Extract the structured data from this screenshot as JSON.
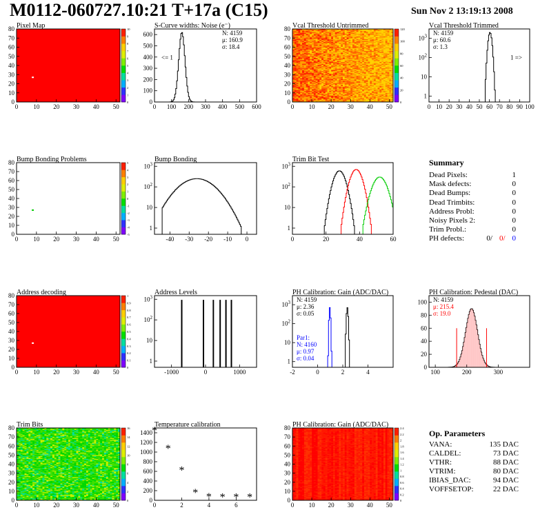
{
  "header": {
    "title": "M0112-060727.10:21 T+17a (C15)",
    "date": "Sun Nov  2 13:19:13 2008"
  },
  "colors": {
    "red": "#ff0000",
    "blue": "#0000ff",
    "green": "#00cc00",
    "black": "#000000",
    "palette": [
      "#8000ff",
      "#3030ff",
      "#00b0ff",
      "#00e0a0",
      "#00e000",
      "#80f000",
      "#e0f000",
      "#ffd000",
      "#ff8000",
      "#ff2000"
    ]
  },
  "summary": {
    "title": "Summary",
    "rows": [
      {
        "label": "Dead Pixels:",
        "value": "1"
      },
      {
        "label": "Mask defects:",
        "value": "0"
      },
      {
        "label": "Dead Bumps:",
        "value": "0"
      },
      {
        "label": "Dead Trimbits:",
        "value": "0"
      },
      {
        "label": "Address Probl:",
        "value": "0"
      },
      {
        "label": "Noisy Pixels 2:",
        "value": "0"
      },
      {
        "label": "Trim Probl.:",
        "value": "0"
      }
    ],
    "ph_defects": {
      "label": "PH defects:",
      "black": "0/",
      "red": "0/",
      "blue": "0"
    }
  },
  "op_parameters": {
    "title": "Op. Parameters",
    "rows": [
      {
        "name": "VANA:",
        "value": "135 DAC"
      },
      {
        "name": "CALDEL:",
        "value": "73 DAC"
      },
      {
        "name": "VTHR:",
        "value": "88 DAC"
      },
      {
        "name": "VTRIM:",
        "value": "80 DAC"
      },
      {
        "name": "IBIAS_DAC:",
        "value": "94 DAC"
      },
      {
        "name": "VOFFSETOP:",
        "value": "22 DAC"
      }
    ]
  },
  "chart_data": [
    {
      "id": "pixel_map",
      "type": "heatmap",
      "title": "Pixel Map",
      "fill": "uniform-red",
      "xlim": [
        0,
        52
      ],
      "ylim": [
        0,
        80
      ],
      "xticks": [
        0,
        10,
        20,
        30,
        40,
        50
      ],
      "yticks": [
        0,
        10,
        20,
        30,
        40,
        50,
        60,
        70,
        80
      ],
      "palette_ticks": [
        "0",
        "1",
        "2",
        "3",
        "4",
        "5",
        "6",
        "7",
        "8",
        "9",
        "10"
      ],
      "outliers": [
        {
          "x": 8,
          "y": 27
        }
      ]
    },
    {
      "id": "noise",
      "type": "histogram",
      "title": "S-Curve widths: Noise (e⁻)",
      "xlim": [
        0,
        600
      ],
      "ylim": [
        0,
        650
      ],
      "xticks": [
        0,
        100,
        200,
        300,
        400,
        500,
        600
      ],
      "yticks": [
        0,
        100,
        200,
        300,
        400,
        500,
        600
      ],
      "series": [
        {
          "name": "",
          "shape": "gauss",
          "mean": 160.9,
          "sigma": 18.4,
          "peak": 620,
          "color": "#000000"
        }
      ],
      "stats": [
        "N: 4159",
        "μ: 160.9",
        "σ: 18.4"
      ],
      "annotations": [
        "<= 1"
      ]
    },
    {
      "id": "vcal_untrimmed",
      "type": "heatmap",
      "title": "Vcal Threshold Untrimmed",
      "fill": "noisy",
      "xlim": [
        0,
        52
      ],
      "ylim": [
        0,
        80
      ],
      "xticks": [
        0,
        10,
        20,
        30,
        40,
        50
      ],
      "yticks": [
        0,
        10,
        20,
        30,
        40,
        50,
        60,
        70,
        80
      ],
      "palette_ticks": [
        "0",
        "20",
        "40",
        "60",
        "80",
        "100",
        "120"
      ]
    },
    {
      "id": "vcal_trimmed",
      "type": "histogram",
      "title": "Vcal Threshold Trimmed",
      "log": true,
      "xlim": [
        0,
        100
      ],
      "ylim": [
        0.5,
        3000
      ],
      "xticks": [
        0,
        10,
        20,
        30,
        40,
        50,
        60,
        70,
        80,
        90,
        100
      ],
      "yticks": [
        1,
        10,
        100,
        1000
      ],
      "series": [
        {
          "name": "",
          "shape": "gauss",
          "mean": 60.6,
          "sigma": 1.3,
          "peak": 2000,
          "color": "#000000"
        }
      ],
      "stats": [
        "N: 4159",
        "μ: 60.6",
        "σ:  1.3"
      ],
      "annotations": [
        "1 =>"
      ]
    },
    {
      "id": "bump_problems",
      "type": "heatmap",
      "title": "Bump Bonding Problems",
      "fill": "empty",
      "xlim": [
        0,
        52
      ],
      "ylim": [
        0,
        80
      ],
      "xticks": [
        0,
        10,
        20,
        30,
        40,
        50
      ],
      "yticks": [
        0,
        10,
        20,
        30,
        40,
        50,
        60,
        70,
        80
      ],
      "palette_ticks": [
        "-5",
        "-4",
        "-3",
        "-2",
        "-1",
        "0",
        "1",
        "2",
        "3",
        "4",
        "5"
      ],
      "outliers": [
        {
          "x": 8,
          "y": 27
        }
      ]
    },
    {
      "id": "bump_bonding",
      "type": "histogram",
      "title": "Bump Bonding",
      "log": true,
      "xlim": [
        -48,
        5
      ],
      "ylim": [
        0.5,
        1500
      ],
      "xticks": [
        -40,
        -30,
        -20,
        -10,
        0
      ],
      "yticks": [
        1,
        10,
        100,
        1000
      ],
      "series": [
        {
          "name": "",
          "shape": "plateau",
          "lo": -44,
          "hi": -3,
          "mean": -26,
          "sigma": 7,
          "peak": 250,
          "color": "#000000"
        }
      ]
    },
    {
      "id": "trim_bits_test",
      "type": "histogram",
      "title": "Trim Bit Test",
      "log": true,
      "xlim": [
        0,
        60
      ],
      "ylim": [
        0.5,
        1500
      ],
      "xticks": [
        0,
        20,
        40,
        60
      ],
      "yticks": [
        1,
        10,
        100,
        1000
      ],
      "series": [
        {
          "name": "",
          "shape": "gauss",
          "mean": 28,
          "sigma": 2.5,
          "peak": 600,
          "color": "#000000"
        },
        {
          "name": "",
          "shape": "gauss",
          "mean": 38,
          "sigma": 2.5,
          "peak": 700,
          "color": "#ff0000"
        },
        {
          "name": "",
          "shape": "gauss",
          "mean": 52,
          "sigma": 3.0,
          "peak": 300,
          "color": "#00cc00"
        }
      ]
    },
    {
      "id": "address_decoding",
      "type": "heatmap",
      "title": "Address decoding",
      "fill": "uniform-red",
      "xlim": [
        0,
        52
      ],
      "ylim": [
        0,
        80
      ],
      "xticks": [
        0,
        10,
        20,
        30,
        40,
        50
      ],
      "yticks": [
        0,
        10,
        20,
        30,
        40,
        50,
        60,
        70,
        80
      ],
      "palette_ticks": [
        "0",
        "0.1",
        "0.2",
        "0.3",
        "0.4",
        "0.5",
        "0.6",
        "0.7",
        "0.8",
        "0.9",
        "1"
      ],
      "outliers": [
        {
          "x": 8,
          "y": 27
        }
      ]
    },
    {
      "id": "address_levels",
      "type": "histogram",
      "title": "Address Levels",
      "log": true,
      "xlim": [
        -1500,
        1500
      ],
      "ylim": [
        0.5,
        1500
      ],
      "xticks": [
        -1000,
        0,
        1000
      ],
      "yticks": [
        1,
        10,
        100,
        1000
      ],
      "series": [
        {
          "name": "",
          "shape": "spikes",
          "x": [
            -700,
            -60,
            230,
            430,
            600,
            760
          ],
          "peak": 900,
          "color": "#000000"
        }
      ]
    },
    {
      "id": "ph_gain",
      "type": "histogram",
      "title": "PH Calibration: Gain (ADC/DAC)",
      "log": true,
      "xlim": [
        -2,
        6
      ],
      "ylim": [
        0.5,
        3000
      ],
      "xticks": [
        -2,
        0,
        2,
        4
      ],
      "yticks": [
        1,
        10,
        100,
        1000
      ],
      "series": [
        {
          "name": "",
          "shape": "gauss",
          "mean": 2.36,
          "sigma": 0.05,
          "peak": 700,
          "color": "#000000"
        },
        {
          "name": "Par1:",
          "shape": "gauss",
          "mean": 0.97,
          "sigma": 0.04,
          "peak": 700,
          "color": "#0000ff"
        }
      ],
      "stats": [
        "N: 4159",
        "μ: 2.36",
        "σ: 0.05"
      ],
      "stats2": [
        "Par1:",
        "N: 4160",
        "μ: 0.97",
        "σ: 0.04"
      ]
    },
    {
      "id": "ph_pedestal",
      "type": "histogram",
      "title": "PH Calibration: Pedestal (DAC)",
      "xlim": [
        80,
        400
      ],
      "ylim": [
        0,
        110
      ],
      "xticks": [
        100,
        200,
        300
      ],
      "yticks": [
        0,
        20,
        40,
        60,
        80,
        100
      ],
      "series": [
        {
          "name": "",
          "shape": "gauss",
          "mean": 215.4,
          "sigma": 19.0,
          "peak": 90,
          "color": "#000000"
        }
      ],
      "stats": [
        "N: 4159",
        "μ: 215.4",
        "σ: 19.0"
      ]
    },
    {
      "id": "trim_bits",
      "type": "heatmap",
      "title": "Trim Bits",
      "fill": "greenish",
      "xlim": [
        0,
        52
      ],
      "ylim": [
        0,
        80
      ],
      "xticks": [
        0,
        10,
        20,
        30,
        40,
        50
      ],
      "yticks": [
        0,
        10,
        20,
        30,
        40,
        50,
        60,
        70,
        80
      ],
      "palette_ticks": [
        "0",
        "2",
        "4",
        "6",
        "8",
        "10",
        "12",
        "14",
        "16"
      ]
    },
    {
      "id": "temperature",
      "type": "scatter",
      "title": "Temperature calibration",
      "xlim": [
        0,
        7.5
      ],
      "ylim": [
        0,
        1500
      ],
      "xticks": [
        0,
        2,
        4,
        6
      ],
      "yticks": [
        0,
        200,
        400,
        600,
        800,
        1000,
        1200,
        1400
      ],
      "x": [
        0,
        1,
        2,
        3,
        4,
        5,
        6,
        7
      ],
      "y": [
        1430,
        1060,
        610,
        140,
        60,
        50,
        50,
        50
      ]
    },
    {
      "id": "ph_gain_map",
      "type": "heatmap",
      "title": "PH Calibration: Gain (ADC/DAC)",
      "fill": "striped-red",
      "xlim": [
        0,
        52
      ],
      "ylim": [
        0,
        80
      ],
      "xticks": [
        0,
        10,
        20,
        30,
        40,
        50
      ],
      "yticks": [
        0,
        10,
        20,
        30,
        40,
        50,
        60,
        70,
        80
      ],
      "palette_ticks": [
        "0",
        "0.2",
        "0.4",
        "0.6",
        "0.8",
        "1",
        "1.2",
        "1.4",
        "1.6",
        "1.8",
        "2",
        "2.2",
        "2.4"
      ]
    }
  ]
}
